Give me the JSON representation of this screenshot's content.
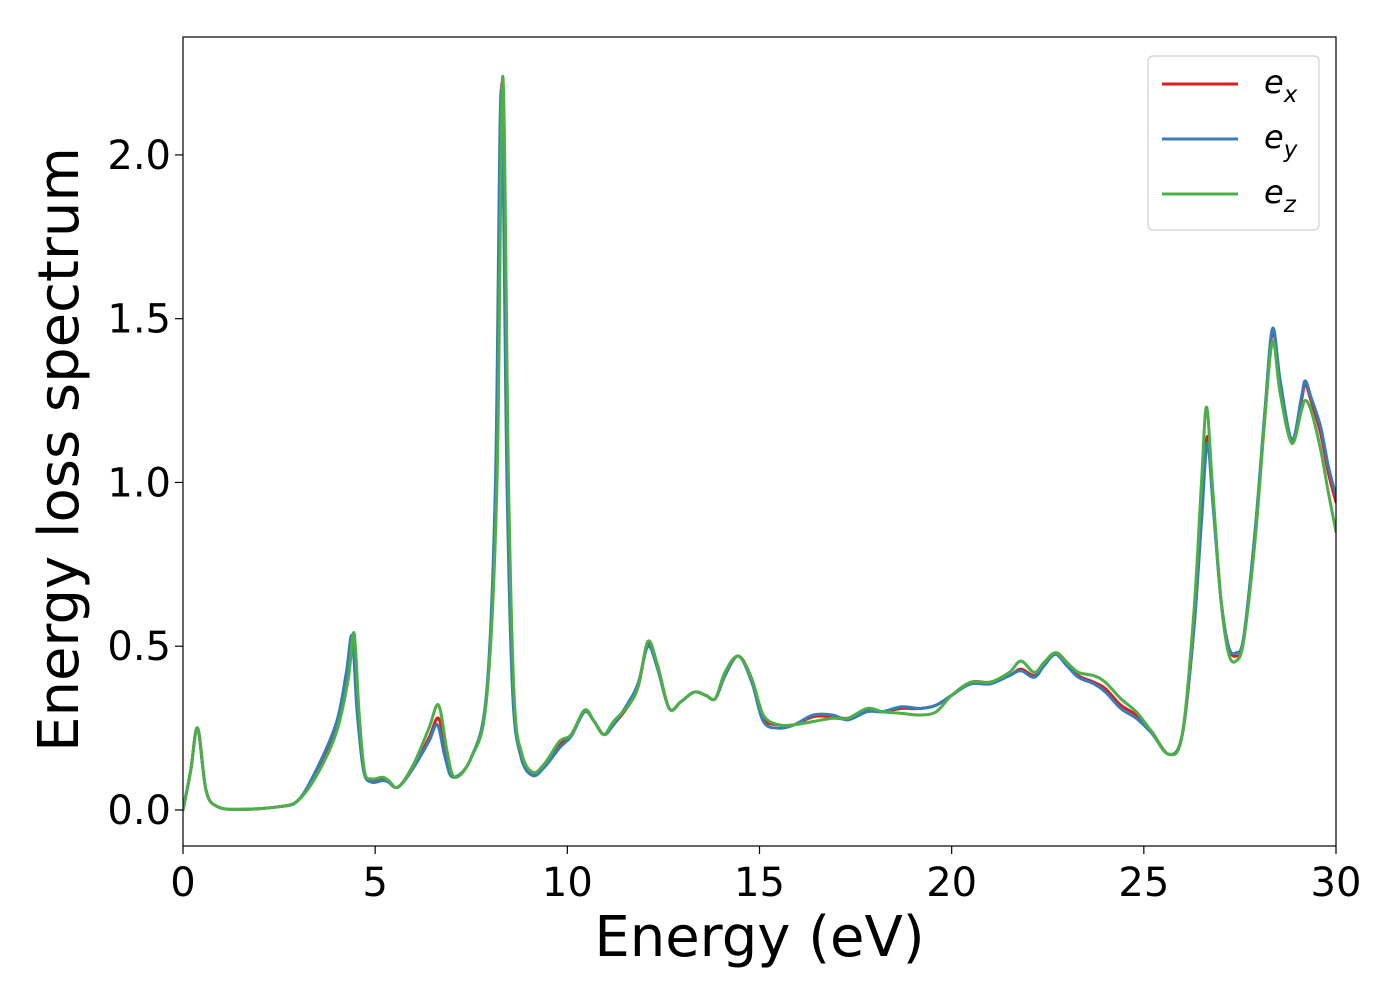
{
  "chart_data": {
    "type": "line",
    "title": "",
    "xlabel": "Energy (eV)",
    "ylabel": "Energy loss spectrum",
    "xlim": [
      0,
      30
    ],
    "ylim": [
      -0.11,
      2.36
    ],
    "xticks": [
      0,
      5,
      10,
      15,
      20,
      25,
      30
    ],
    "xtick_labels": [
      "0",
      "5",
      "10",
      "15",
      "20",
      "25",
      "30"
    ],
    "yticks": [
      0.0,
      0.5,
      1.0,
      1.5,
      2.0
    ],
    "ytick_labels": [
      "0.0",
      "0.5",
      "1.0",
      "1.5",
      "2.0"
    ],
    "grid": false,
    "legend_position": "top-right",
    "series": [
      {
        "name": "e_x",
        "base": "e",
        "sub": "x",
        "color": "#e41a1c",
        "points": [
          [
            0,
            0.0
          ],
          [
            0.2,
            0.12
          ],
          [
            0.38,
            0.25
          ],
          [
            0.6,
            0.06
          ],
          [
            0.9,
            0.01
          ],
          [
            1.5,
            0.002
          ],
          [
            2.5,
            0.01
          ],
          [
            3.0,
            0.03
          ],
          [
            3.5,
            0.12
          ],
          [
            4.0,
            0.25
          ],
          [
            4.25,
            0.4
          ],
          [
            4.42,
            0.53
          ],
          [
            4.55,
            0.3
          ],
          [
            4.7,
            0.12
          ],
          [
            4.9,
            0.09
          ],
          [
            5.2,
            0.095
          ],
          [
            5.35,
            0.085
          ],
          [
            5.6,
            0.07
          ],
          [
            6.0,
            0.13
          ],
          [
            6.4,
            0.22
          ],
          [
            6.65,
            0.28
          ],
          [
            6.85,
            0.17
          ],
          [
            7.05,
            0.1
          ],
          [
            7.5,
            0.16
          ],
          [
            7.9,
            0.35
          ],
          [
            8.15,
            1.0
          ],
          [
            8.3,
            2.22
          ],
          [
            8.45,
            1.0
          ],
          [
            8.6,
            0.35
          ],
          [
            8.8,
            0.16
          ],
          [
            9.1,
            0.11
          ],
          [
            9.4,
            0.14
          ],
          [
            9.8,
            0.2
          ],
          [
            10.1,
            0.23
          ],
          [
            10.45,
            0.3
          ],
          [
            10.7,
            0.27
          ],
          [
            10.95,
            0.23
          ],
          [
            11.2,
            0.26
          ],
          [
            11.6,
            0.32
          ],
          [
            11.85,
            0.38
          ],
          [
            12.1,
            0.51
          ],
          [
            12.35,
            0.44
          ],
          [
            12.65,
            0.31
          ],
          [
            12.95,
            0.33
          ],
          [
            13.3,
            0.36
          ],
          [
            13.6,
            0.35
          ],
          [
            13.85,
            0.34
          ],
          [
            14.1,
            0.41
          ],
          [
            14.45,
            0.47
          ],
          [
            14.8,
            0.4
          ],
          [
            15.1,
            0.28
          ],
          [
            15.5,
            0.26
          ],
          [
            15.9,
            0.26
          ],
          [
            16.4,
            0.285
          ],
          [
            16.9,
            0.285
          ],
          [
            17.3,
            0.28
          ],
          [
            17.8,
            0.305
          ],
          [
            18.2,
            0.3
          ],
          [
            18.7,
            0.31
          ],
          [
            19.2,
            0.31
          ],
          [
            19.6,
            0.32
          ],
          [
            20.0,
            0.35
          ],
          [
            20.5,
            0.39
          ],
          [
            21.0,
            0.39
          ],
          [
            21.5,
            0.41
          ],
          [
            21.8,
            0.43
          ],
          [
            22.15,
            0.41
          ],
          [
            22.4,
            0.44
          ],
          [
            22.7,
            0.48
          ],
          [
            23.0,
            0.45
          ],
          [
            23.3,
            0.41
          ],
          [
            23.7,
            0.39
          ],
          [
            24.0,
            0.37
          ],
          [
            24.4,
            0.32
          ],
          [
            24.8,
            0.29
          ],
          [
            25.2,
            0.24
          ],
          [
            25.65,
            0.17
          ],
          [
            26.0,
            0.23
          ],
          [
            26.3,
            0.55
          ],
          [
            26.5,
            0.9
          ],
          [
            26.65,
            1.14
          ],
          [
            26.8,
            0.95
          ],
          [
            27.0,
            0.65
          ],
          [
            27.2,
            0.5
          ],
          [
            27.4,
            0.47
          ],
          [
            27.6,
            0.52
          ],
          [
            27.9,
            0.85
          ],
          [
            28.15,
            1.2
          ],
          [
            28.35,
            1.46
          ],
          [
            28.55,
            1.3
          ],
          [
            28.85,
            1.12
          ],
          [
            29.1,
            1.25
          ],
          [
            29.2,
            1.3
          ],
          [
            29.35,
            1.25
          ],
          [
            29.6,
            1.15
          ],
          [
            29.8,
            1.03
          ],
          [
            30.0,
            0.94
          ]
        ]
      },
      {
        "name": "e_y",
        "base": "e",
        "sub": "y",
        "color": "#377eb8",
        "points": [
          [
            0,
            0.0
          ],
          [
            0.2,
            0.12
          ],
          [
            0.38,
            0.25
          ],
          [
            0.6,
            0.06
          ],
          [
            0.9,
            0.01
          ],
          [
            1.5,
            0.002
          ],
          [
            2.5,
            0.01
          ],
          [
            3.0,
            0.03
          ],
          [
            3.5,
            0.13
          ],
          [
            4.0,
            0.27
          ],
          [
            4.25,
            0.42
          ],
          [
            4.4,
            0.53
          ],
          [
            4.53,
            0.3
          ],
          [
            4.7,
            0.12
          ],
          [
            4.9,
            0.085
          ],
          [
            5.2,
            0.09
          ],
          [
            5.35,
            0.085
          ],
          [
            5.6,
            0.07
          ],
          [
            6.0,
            0.13
          ],
          [
            6.4,
            0.21
          ],
          [
            6.62,
            0.26
          ],
          [
            6.82,
            0.16
          ],
          [
            7.03,
            0.1
          ],
          [
            7.5,
            0.16
          ],
          [
            7.9,
            0.36
          ],
          [
            8.13,
            1.0
          ],
          [
            8.28,
            2.2
          ],
          [
            8.43,
            1.0
          ],
          [
            8.58,
            0.35
          ],
          [
            8.8,
            0.16
          ],
          [
            9.1,
            0.105
          ],
          [
            9.4,
            0.13
          ],
          [
            9.8,
            0.19
          ],
          [
            10.1,
            0.225
          ],
          [
            10.45,
            0.3
          ],
          [
            10.7,
            0.27
          ],
          [
            10.95,
            0.23
          ],
          [
            11.2,
            0.26
          ],
          [
            11.6,
            0.33
          ],
          [
            11.85,
            0.39
          ],
          [
            12.1,
            0.5
          ],
          [
            12.35,
            0.43
          ],
          [
            12.65,
            0.31
          ],
          [
            12.95,
            0.33
          ],
          [
            13.3,
            0.36
          ],
          [
            13.6,
            0.35
          ],
          [
            13.85,
            0.34
          ],
          [
            14.1,
            0.41
          ],
          [
            14.45,
            0.47
          ],
          [
            14.8,
            0.39
          ],
          [
            15.1,
            0.27
          ],
          [
            15.5,
            0.25
          ],
          [
            15.9,
            0.26
          ],
          [
            16.4,
            0.29
          ],
          [
            16.9,
            0.29
          ],
          [
            17.3,
            0.275
          ],
          [
            17.8,
            0.3
          ],
          [
            18.2,
            0.3
          ],
          [
            18.7,
            0.315
          ],
          [
            19.2,
            0.31
          ],
          [
            19.6,
            0.32
          ],
          [
            20.0,
            0.35
          ],
          [
            20.5,
            0.385
          ],
          [
            21.0,
            0.385
          ],
          [
            21.5,
            0.41
          ],
          [
            21.8,
            0.425
          ],
          [
            22.15,
            0.405
          ],
          [
            22.4,
            0.44
          ],
          [
            22.7,
            0.475
          ],
          [
            23.0,
            0.44
          ],
          [
            23.3,
            0.405
          ],
          [
            23.7,
            0.385
          ],
          [
            24.0,
            0.36
          ],
          [
            24.4,
            0.31
          ],
          [
            24.8,
            0.28
          ],
          [
            25.2,
            0.235
          ],
          [
            25.65,
            0.17
          ],
          [
            26.0,
            0.23
          ],
          [
            26.3,
            0.55
          ],
          [
            26.5,
            0.88
          ],
          [
            26.65,
            1.12
          ],
          [
            26.8,
            0.93
          ],
          [
            27.0,
            0.65
          ],
          [
            27.2,
            0.5
          ],
          [
            27.4,
            0.48
          ],
          [
            27.6,
            0.53
          ],
          [
            27.9,
            0.86
          ],
          [
            28.15,
            1.22
          ],
          [
            28.35,
            1.47
          ],
          [
            28.55,
            1.31
          ],
          [
            28.85,
            1.13
          ],
          [
            29.1,
            1.26
          ],
          [
            29.2,
            1.31
          ],
          [
            29.35,
            1.26
          ],
          [
            29.6,
            1.17
          ],
          [
            29.8,
            1.05
          ],
          [
            30.0,
            0.96
          ]
        ]
      },
      {
        "name": "e_z",
        "base": "e",
        "sub": "z",
        "color": "#4daf4a",
        "points": [
          [
            0,
            0.0
          ],
          [
            0.2,
            0.12
          ],
          [
            0.38,
            0.25
          ],
          [
            0.6,
            0.06
          ],
          [
            0.9,
            0.01
          ],
          [
            1.5,
            0.002
          ],
          [
            2.5,
            0.01
          ],
          [
            3.0,
            0.03
          ],
          [
            3.5,
            0.11
          ],
          [
            4.0,
            0.24
          ],
          [
            4.3,
            0.4
          ],
          [
            4.45,
            0.54
          ],
          [
            4.58,
            0.3
          ],
          [
            4.72,
            0.12
          ],
          [
            4.9,
            0.095
          ],
          [
            5.2,
            0.1
          ],
          [
            5.35,
            0.09
          ],
          [
            5.6,
            0.07
          ],
          [
            6.0,
            0.14
          ],
          [
            6.4,
            0.25
          ],
          [
            6.65,
            0.32
          ],
          [
            6.87,
            0.18
          ],
          [
            7.07,
            0.1
          ],
          [
            7.5,
            0.16
          ],
          [
            7.9,
            0.34
          ],
          [
            8.17,
            1.0
          ],
          [
            8.32,
            2.24
          ],
          [
            8.47,
            1.0
          ],
          [
            8.62,
            0.34
          ],
          [
            8.82,
            0.17
          ],
          [
            9.1,
            0.115
          ],
          [
            9.4,
            0.14
          ],
          [
            9.8,
            0.21
          ],
          [
            10.1,
            0.23
          ],
          [
            10.45,
            0.305
          ],
          [
            10.7,
            0.27
          ],
          [
            10.95,
            0.23
          ],
          [
            11.2,
            0.27
          ],
          [
            11.6,
            0.32
          ],
          [
            11.85,
            0.38
          ],
          [
            12.1,
            0.515
          ],
          [
            12.35,
            0.44
          ],
          [
            12.65,
            0.31
          ],
          [
            12.95,
            0.33
          ],
          [
            13.3,
            0.36
          ],
          [
            13.6,
            0.35
          ],
          [
            13.85,
            0.34
          ],
          [
            14.1,
            0.42
          ],
          [
            14.45,
            0.47
          ],
          [
            14.8,
            0.4
          ],
          [
            15.1,
            0.29
          ],
          [
            15.5,
            0.26
          ],
          [
            15.9,
            0.26
          ],
          [
            16.4,
            0.27
          ],
          [
            16.9,
            0.28
          ],
          [
            17.3,
            0.28
          ],
          [
            17.8,
            0.31
          ],
          [
            18.2,
            0.3
          ],
          [
            18.7,
            0.295
          ],
          [
            19.2,
            0.29
          ],
          [
            19.6,
            0.3
          ],
          [
            20.0,
            0.35
          ],
          [
            20.5,
            0.39
          ],
          [
            21.0,
            0.39
          ],
          [
            21.5,
            0.42
          ],
          [
            21.8,
            0.455
          ],
          [
            22.15,
            0.42
          ],
          [
            22.4,
            0.45
          ],
          [
            22.7,
            0.48
          ],
          [
            23.0,
            0.45
          ],
          [
            23.3,
            0.42
          ],
          [
            23.7,
            0.41
          ],
          [
            24.0,
            0.39
          ],
          [
            24.4,
            0.34
          ],
          [
            24.8,
            0.3
          ],
          [
            25.2,
            0.24
          ],
          [
            25.65,
            0.17
          ],
          [
            26.0,
            0.23
          ],
          [
            26.3,
            0.6
          ],
          [
            26.5,
            1.0
          ],
          [
            26.63,
            1.23
          ],
          [
            26.78,
            1.0
          ],
          [
            27.0,
            0.65
          ],
          [
            27.2,
            0.48
          ],
          [
            27.4,
            0.455
          ],
          [
            27.6,
            0.52
          ],
          [
            27.9,
            0.83
          ],
          [
            28.15,
            1.2
          ],
          [
            28.35,
            1.43
          ],
          [
            28.55,
            1.27
          ],
          [
            28.85,
            1.12
          ],
          [
            29.1,
            1.22
          ],
          [
            29.2,
            1.25
          ],
          [
            29.35,
            1.22
          ],
          [
            29.6,
            1.1
          ],
          [
            29.8,
            0.97
          ],
          [
            30.0,
            0.85
          ]
        ]
      }
    ]
  }
}
